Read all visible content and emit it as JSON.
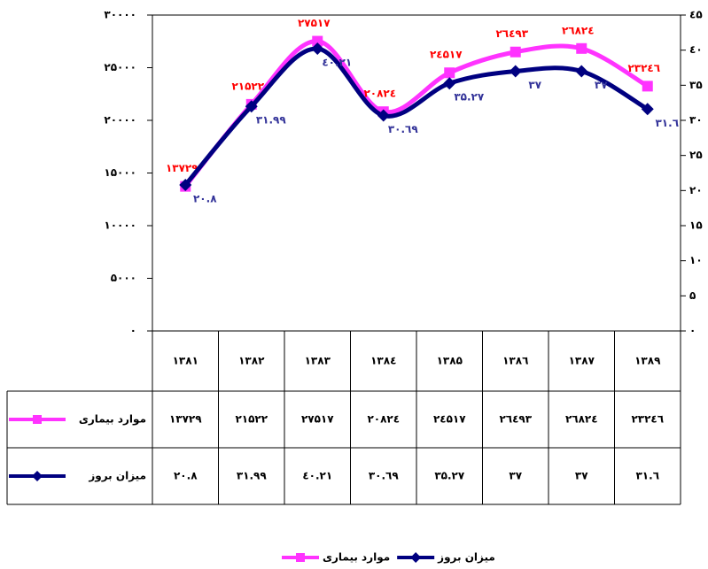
{
  "chart_data": {
    "type": "line",
    "categories": [
      "۱۳۸۱",
      "۱۳۸۲",
      "۱۳۸۳",
      "۱۳۸٤",
      "۱۳۸۵",
      "۱۳۸٦",
      "۱۳۸۷",
      "۱۳۸۹"
    ],
    "series": [
      {
        "name": "موارد بیماری",
        "color": "#ff33ff",
        "label_color": "#ff0000",
        "marker": "square",
        "axis": "y",
        "values": [
          13729,
          21522,
          27517,
          20824,
          24517,
          26493,
          26824,
          23246
        ],
        "value_labels": [
          "۱۳۷۲۹",
          "۲۱۵۲۲",
          "۲۷۵۱۷",
          "۲۰۸۲٤",
          "۲٤۵۱۷",
          "۲٦٤۹۳",
          "۲٦۸۲٤",
          "۲۳۲٤٦"
        ]
      },
      {
        "name": "میزان بروز",
        "color": "#000080",
        "label_color": "#333399",
        "marker": "diamond",
        "axis": "y2",
        "values": [
          20.8,
          31.99,
          40.21,
          30.69,
          35.27,
          37,
          37,
          31.6
        ],
        "value_labels": [
          "۲۰.۸",
          "۳۱.۹۹",
          "٤۰.۲۱",
          "۳۰.٦۹",
          "۳۵.۲۷",
          "۳۷",
          "۳۷",
          "۳۱.٦"
        ]
      }
    ],
    "ylim": [
      0,
      30000
    ],
    "yticks": [
      {
        "value": 0,
        "label": "۰"
      },
      {
        "value": 5000,
        "label": "۵۰۰۰"
      },
      {
        "value": 10000,
        "label": "۱۰۰۰۰"
      },
      {
        "value": 15000,
        "label": "۱۵۰۰۰"
      },
      {
        "value": 20000,
        "label": "۲۰۰۰۰"
      },
      {
        "value": 25000,
        "label": "۲۵۰۰۰"
      },
      {
        "value": 30000,
        "label": "۳۰۰۰۰"
      }
    ],
    "y2lim": [
      0,
      45
    ],
    "y2ticks": [
      {
        "value": 0,
        "label": "۰"
      },
      {
        "value": 5,
        "label": "۵"
      },
      {
        "value": 10,
        "label": "۱۰"
      },
      {
        "value": 15,
        "label": "۱۵"
      },
      {
        "value": 20,
        "label": "۲۰"
      },
      {
        "value": 25,
        "label": "۲۵"
      },
      {
        "value": 30,
        "label": "۳۰"
      },
      {
        "value": 35,
        "label": "۳۵"
      },
      {
        "value": 40,
        "label": "٤۰"
      },
      {
        "value": 45,
        "label": "٤۵"
      }
    ],
    "smooth": true,
    "data_table": true,
    "legend": "bottom"
  }
}
